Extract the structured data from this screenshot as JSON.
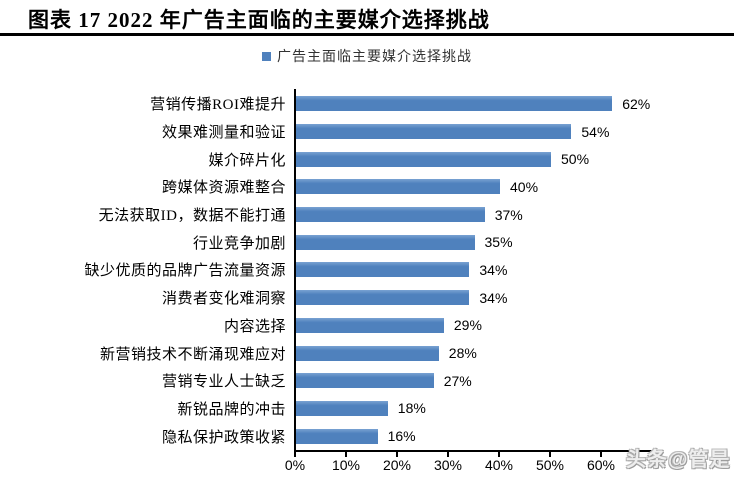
{
  "header": {
    "title": "图表 17 2022 年广告主面临的主要媒介选择挑战"
  },
  "legend": {
    "label": "广告主面临主要媒介选择挑战"
  },
  "watermark": "头条@管是",
  "colors": {
    "bar": "#4f81bd",
    "axis": "#000000",
    "watermark": "#bdbdbd"
  },
  "chart_data": {
    "type": "bar",
    "orientation": "horizontal",
    "title": "图表 17 2022 年广告主面临的主要媒介选择挑战",
    "legend_entries": [
      "广告主面临主要媒介选择挑战"
    ],
    "legend_position": "top-center",
    "grid": false,
    "categories": [
      "营销传播ROI难提升",
      "效果难测量和验证",
      "媒介碎片化",
      "跨媒体资源难整合",
      "无法获取ID，数据不能打通",
      "行业竞争加剧",
      "缺少优质的品牌广告流量资源",
      "消费者变化难洞察",
      "内容选择",
      "新营销技术不断涌现难应对",
      "营销专业人士缺乏",
      "新锐品牌的冲击",
      "隐私保护政策收紧"
    ],
    "values": [
      62,
      54,
      50,
      40,
      37,
      35,
      34,
      34,
      29,
      28,
      27,
      18,
      16
    ],
    "unit": "%",
    "xlabel": "",
    "ylabel": "",
    "xlim": [
      0,
      70
    ],
    "x_tick_labels": [
      "0%",
      "10%",
      "20%",
      "30%",
      "40%",
      "50%",
      "60%"
    ],
    "data_labels_shown": true
  }
}
